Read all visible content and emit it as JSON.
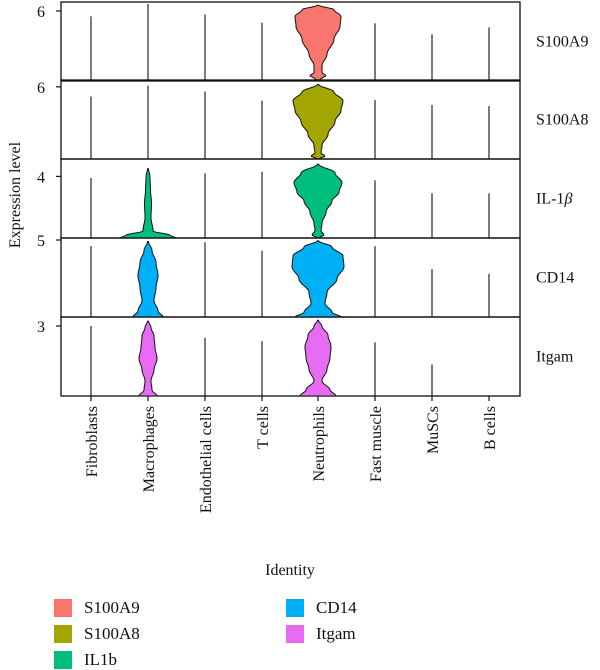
{
  "chart_data": {
    "type": "violin",
    "xlabel": "Identity",
    "ylabel": "Expression level",
    "categories": [
      "Fibroblasts",
      "Macrophages",
      "Endothelial cells",
      "T cells",
      "Neutrophils",
      "Fast muscle",
      "MuSCs",
      "B cells"
    ],
    "panels": [
      {
        "gene": "S100A9",
        "label": "S100A9",
        "color": "#F8766D",
        "y_tick": 6,
        "y_max_value": 6.6,
        "max_values": [
          5.55,
          6.6,
          5.7,
          5.0,
          6.5,
          4.95,
          4.0,
          4.6
        ]
      },
      {
        "gene": "S100A8",
        "label": "S100A8",
        "color": "#A3A500",
        "y_tick": 6,
        "y_max_value": 6.4,
        "max_values": [
          5.2,
          6.1,
          5.6,
          4.85,
          6.2,
          4.9,
          4.5,
          4.4
        ]
      },
      {
        "gene": "IL-1β",
        "label": "IL-1",
        "label_suffix": "β",
        "color": "#00BF7D",
        "y_tick": 4,
        "y_max_value": 5.0,
        "max_values": [
          3.9,
          4.5,
          4.2,
          4.3,
          4.8,
          3.75,
          2.9,
          2.9
        ]
      },
      {
        "gene": "CD14",
        "label": "CD14",
        "color": "#00B0F6",
        "y_tick": 5,
        "y_max_value": 5.0,
        "max_values": [
          4.6,
          4.9,
          4.85,
          4.3,
          4.95,
          4.6,
          3.1,
          2.8
        ]
      },
      {
        "gene": "Itgam",
        "label": "Itgam",
        "color": "#E76BF3",
        "y_tick": 3,
        "y_max_value": 3.3,
        "max_values": [
          3.0,
          3.2,
          2.5,
          2.35,
          3.25,
          2.3,
          1.35,
          0
        ]
      }
    ],
    "legend": [
      "S100A9",
      "S100A8",
      "IL1b",
      "CD14",
      "Itgam"
    ],
    "legend_colors": [
      "#F8766D",
      "#A3A500",
      "#00BF7D",
      "#00B0F6",
      "#E76BF3"
    ],
    "legend_placement": "bottom",
    "grid": false
  }
}
